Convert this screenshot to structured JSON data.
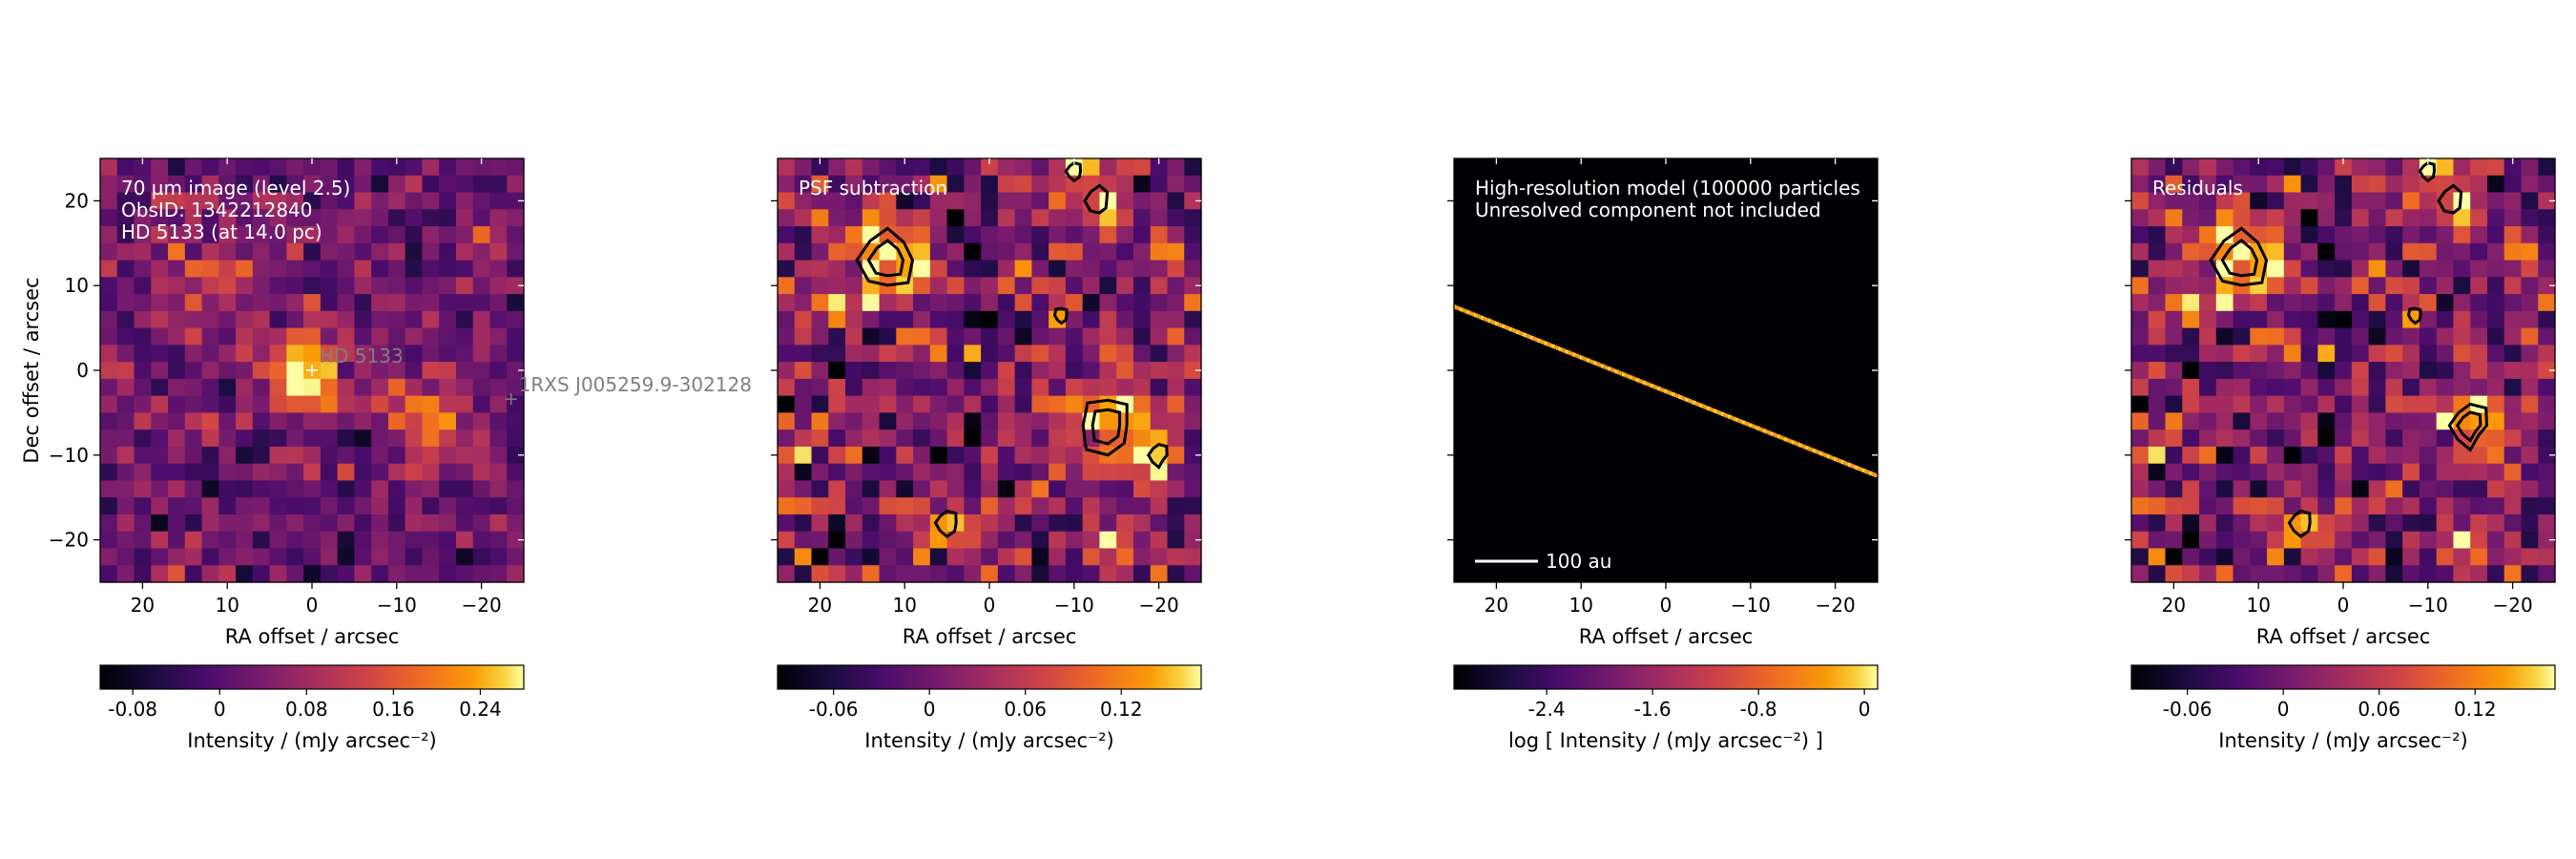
{
  "chart_data": [
    {
      "type": "heatmap",
      "panel": "observation",
      "annotation_lines": [
        "70 µm image (level 2.5)",
        "ObsID: 1342212840",
        "HD 5133 (at 14.0 pc)"
      ],
      "xlabel": "RA offset / arcsec",
      "ylabel": "Dec offset / arcsec",
      "xlim": [
        25,
        -25
      ],
      "ylim": [
        -25,
        25
      ],
      "xticks": [
        "20",
        "10",
        "0",
        "−10",
        "−20"
      ],
      "yticks": [
        "20",
        "10",
        "0",
        "−10",
        "−20"
      ],
      "colormap": "inferno",
      "colorbar": {
        "label": "Intensity / (mJy arcsec⁻²)",
        "ticks": [
          "-0.08",
          "0",
          "0.08",
          "0.16",
          "0.24"
        ],
        "range": [
          -0.11,
          0.28
        ]
      },
      "markers": [
        {
          "label": "HD   5133",
          "x": 0,
          "y": 0
        },
        {
          "label": "1RXS J005259.9-302128",
          "x": -23.5,
          "y": -3.4
        }
      ],
      "bright_sources": [
        {
          "x": 0,
          "y": 0,
          "peak": 0.28,
          "sigma": 1.8
        },
        {
          "x": -14,
          "y": -6.5,
          "peak": 0.17,
          "sigma": 1.8
        },
        {
          "x": 12,
          "y": 12,
          "peak": 0.1,
          "sigma": 2.5
        }
      ]
    },
    {
      "type": "heatmap",
      "panel": "psf-subtraction",
      "annotation_lines": [
        "PSF subtraction"
      ],
      "xlabel": "RA offset / arcsec",
      "xlim": [
        25,
        -25
      ],
      "ylim": [
        -25,
        25
      ],
      "xticks": [
        "20",
        "10",
        "0",
        "−10",
        "−20"
      ],
      "colormap": "inferno",
      "colorbar": {
        "label": "Intensity / (mJy arcsec⁻²)",
        "ticks": [
          "-0.06",
          "0",
          "0.06",
          "0.12"
        ],
        "range": [
          -0.095,
          0.17
        ]
      },
      "contour_sources": [
        {
          "x": 12,
          "y": 13,
          "size": 2.5
        },
        {
          "x": -13,
          "y": 20,
          "size": 1.2
        },
        {
          "x": -10,
          "y": 23.5,
          "size": 0.7
        },
        {
          "x": -14,
          "y": -6.5,
          "size": 2.5
        },
        {
          "x": -20,
          "y": -10,
          "size": 0.9
        },
        {
          "x": 5,
          "y": -18,
          "size": 1.0
        },
        {
          "x": -8.5,
          "y": 6.5,
          "size": 0.6
        }
      ]
    },
    {
      "type": "heatmap",
      "panel": "model",
      "annotation_lines": [
        "High-resolution model (100000 particles",
        "Unresolved component not included"
      ],
      "xlabel": "RA offset / arcsec",
      "xlim": [
        25,
        -25
      ],
      "ylim": [
        -25,
        25
      ],
      "xticks": [
        "20",
        "10",
        "0",
        "−10",
        "−20"
      ],
      "colormap": "inferno",
      "colorbar": {
        "label": "log [ Intensity / (mJy arcsec⁻²) ]",
        "ticks": [
          "-2.4",
          "-1.6",
          "-0.8",
          "0"
        ],
        "range": [
          -3.1,
          0.1
        ]
      },
      "scalebar": {
        "label": "100 au"
      },
      "disk_line": {
        "x_from": 25,
        "y_from": 7.5,
        "x_to": -25,
        "y_to": -12.5
      }
    },
    {
      "type": "heatmap",
      "panel": "residuals",
      "annotation_lines": [
        "Residuals"
      ],
      "xlabel": "RA offset / arcsec",
      "xlim": [
        25,
        -25
      ],
      "ylim": [
        -25,
        25
      ],
      "xticks": [
        "20",
        "10",
        "0",
        "−10",
        "−20"
      ],
      "colormap": "inferno",
      "colorbar": {
        "label": "Intensity / (mJy arcsec⁻²)",
        "ticks": [
          "-0.06",
          "0",
          "0.06",
          "0.12"
        ],
        "range": [
          -0.095,
          0.17
        ]
      },
      "contour_sources": [
        {
          "x": 12,
          "y": 13,
          "size": 2.5
        },
        {
          "x": -13,
          "y": 20,
          "size": 1.2
        },
        {
          "x": -10,
          "y": 23.5,
          "size": 0.7
        },
        {
          "x": -15,
          "y": -6.5,
          "size": 1.8
        },
        {
          "x": 5,
          "y": -18,
          "size": 1.0
        },
        {
          "x": -8.5,
          "y": 6.5,
          "size": 0.6
        }
      ]
    }
  ]
}
